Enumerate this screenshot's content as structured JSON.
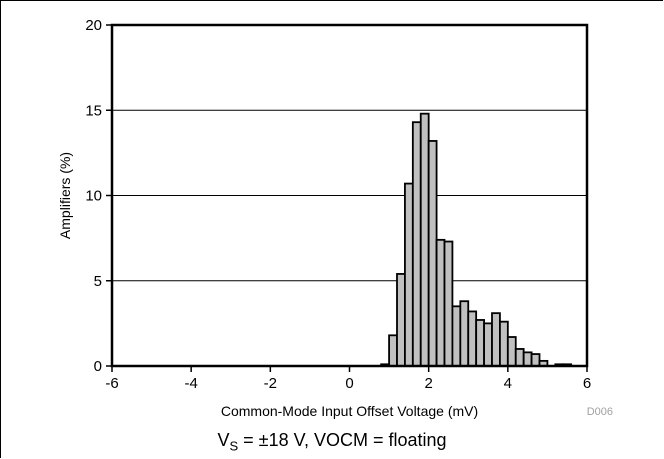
{
  "chart_data": {
    "type": "bar",
    "xlabel": "Common-Mode Input Offset Voltage (mV)",
    "ylabel": "Amplifiers (%)",
    "xlim": [
      -6,
      6
    ],
    "ylim": [
      0,
      20
    ],
    "xticks": [
      "-6",
      "-4",
      "-2",
      "0",
      "2",
      "4",
      "6"
    ],
    "yticks": [
      "0",
      "5",
      "10",
      "15",
      "20"
    ],
    "grid": "horizontal",
    "bin_width": 0.2,
    "bins": [
      {
        "x0": 0.8,
        "value": 0.1
      },
      {
        "x0": 1.0,
        "value": 1.8
      },
      {
        "x0": 1.2,
        "value": 5.4
      },
      {
        "x0": 1.4,
        "value": 10.7
      },
      {
        "x0": 1.6,
        "value": 14.3
      },
      {
        "x0": 1.8,
        "value": 14.8
      },
      {
        "x0": 2.0,
        "value": 13.2
      },
      {
        "x0": 2.2,
        "value": 7.4
      },
      {
        "x0": 2.4,
        "value": 7.3
      },
      {
        "x0": 2.6,
        "value": 3.5
      },
      {
        "x0": 2.8,
        "value": 3.8
      },
      {
        "x0": 3.0,
        "value": 3.2
      },
      {
        "x0": 3.2,
        "value": 2.7
      },
      {
        "x0": 3.4,
        "value": 2.5
      },
      {
        "x0": 3.6,
        "value": 3.1
      },
      {
        "x0": 3.8,
        "value": 2.6
      },
      {
        "x0": 4.0,
        "value": 1.7
      },
      {
        "x0": 4.2,
        "value": 1.0
      },
      {
        "x0": 4.4,
        "value": 0.8
      },
      {
        "x0": 4.6,
        "value": 0.7
      },
      {
        "x0": 4.8,
        "value": 0.3
      },
      {
        "x0": 5.2,
        "value": 0.1
      },
      {
        "x0": 5.4,
        "value": 0.1
      }
    ],
    "bar_color": "#c0c0c0",
    "bar_edge_color": "#000000",
    "grid_color": "#000000",
    "code": "D006"
  },
  "caption": {
    "v": "V",
    "sub": "S",
    "rest": " = ±18 V, VOCM = floating"
  }
}
